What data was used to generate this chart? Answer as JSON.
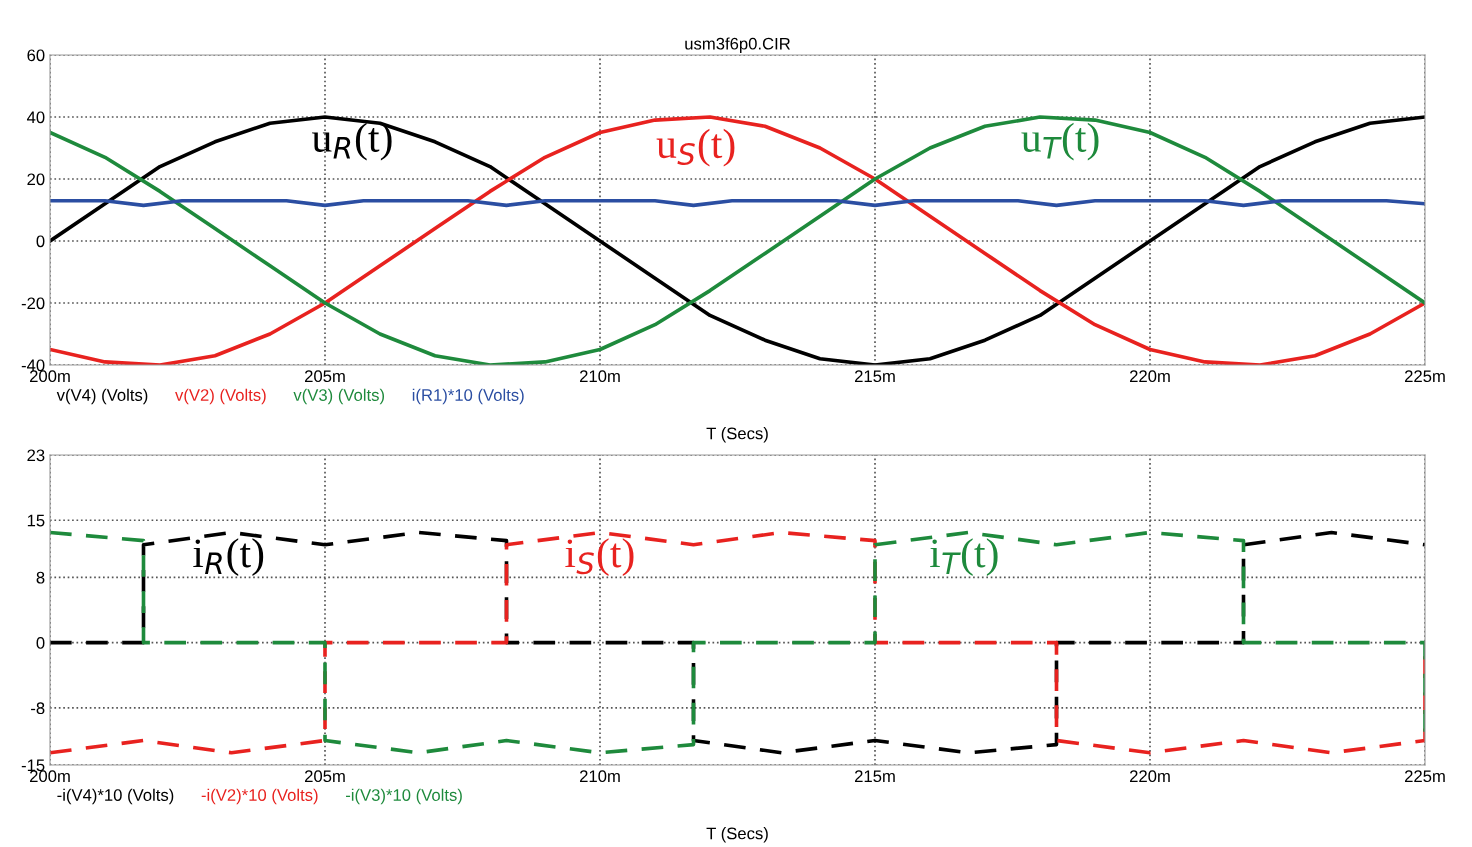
{
  "chart_data": [
    {
      "type": "line",
      "title": "usm3f6p0.CIR",
      "xlabel": "T (Secs)",
      "x": [
        200,
        201,
        202,
        203,
        204,
        205,
        206,
        207,
        208,
        209,
        210,
        211,
        212,
        213,
        214,
        215,
        216,
        217,
        218,
        219,
        220,
        221,
        222,
        223,
        224,
        225
      ],
      "series": [
        {
          "name": "v(V4) (Volts)",
          "color": "#000000",
          "values": [
            0,
            12,
            24,
            32,
            38,
            40,
            38,
            32,
            24,
            12,
            0,
            -12,
            -24,
            -32,
            -38,
            -40,
            -38,
            -32,
            -24,
            -12,
            0,
            12,
            24,
            32,
            38,
            40
          ]
        },
        {
          "name": "v(V2) (Volts)",
          "color": "#e8221f",
          "values": [
            -35,
            -39,
            -40,
            -37,
            -30,
            -20,
            -8,
            4,
            16,
            27,
            35,
            39,
            40,
            37,
            30,
            20,
            8,
            -4,
            -16,
            -27,
            -35,
            -39,
            -40,
            -37,
            -30,
            -20
          ]
        },
        {
          "name": "v(V3) (Volts)",
          "color": "#1e8a3c",
          "values": [
            35,
            27,
            16,
            4,
            -8,
            -20,
            -30,
            -37,
            -40,
            -39,
            -35,
            -27,
            -16,
            -4,
            8,
            20,
            30,
            37,
            40,
            39,
            35,
            27,
            16,
            4,
            -8,
            -20
          ]
        },
        {
          "name": "i(R1)*10 (Volts)",
          "color": "#2b4ea2",
          "x": [
            200,
            201,
            201.7,
            202.4,
            204.3,
            205,
            205.7,
            207.6,
            208.3,
            209,
            211,
            211.7,
            212.4,
            214.3,
            215,
            215.7,
            217.6,
            218.3,
            219,
            221,
            221.7,
            222.4,
            224.3,
            225
          ],
          "values": [
            13,
            13,
            11.5,
            13,
            13,
            11.5,
            13,
            13,
            11.5,
            13,
            13,
            11.5,
            13,
            13,
            11.5,
            13,
            13,
            11.5,
            13,
            13,
            11.5,
            13,
            13,
            12
          ]
        }
      ],
      "annotations": [
        "u$_{R}$(t)",
        "u$_{S}$(t)",
        "u$_{T}$(t)"
      ],
      "xlim": [
        200,
        225
      ],
      "xticks": [
        {
          "value": 200,
          "label": "200m"
        },
        {
          "value": 205,
          "label": "205m"
        },
        {
          "value": 210,
          "label": "210m"
        },
        {
          "value": 215,
          "label": "215m"
        },
        {
          "value": 220,
          "label": "220m"
        },
        {
          "value": 225,
          "label": "225m"
        }
      ],
      "ylim": [
        -40,
        60
      ],
      "yticks": [
        -40,
        -20,
        0,
        20,
        40,
        60
      ],
      "grid": true,
      "legend": "bottom",
      "line_style": "solid"
    },
    {
      "type": "line",
      "xlabel": "T (Secs)",
      "line_style": "dashed",
      "series": [
        {
          "name": "-i(V4)*10 (Volts)",
          "color": "#000000",
          "x": [
            200,
            201.7,
            201.7,
            203.3,
            205,
            206.7,
            208.3,
            208.3,
            211.7,
            211.7,
            213.3,
            215,
            216.7,
            218.3,
            218.3,
            221.7,
            221.7,
            223.3,
            225
          ],
          "values": [
            0,
            0,
            12,
            13.5,
            12,
            13.5,
            12.5,
            0,
            0,
            -12,
            -13.5,
            -12,
            -13.5,
            -12.5,
            0,
            0,
            12,
            13.5,
            12
          ]
        },
        {
          "name": "-i(V2)*10 (Volts)",
          "color": "#e8221f",
          "x": [
            200,
            201.7,
            203.3,
            205,
            205,
            208.3,
            208.3,
            210,
            211.7,
            213.3,
            215,
            215,
            218.3,
            218.3,
            220,
            221.7,
            223.3,
            225,
            225
          ],
          "values": [
            -13.5,
            -12,
            -13.5,
            -12,
            0,
            0,
            12,
            13.5,
            12,
            13.5,
            12.5,
            0,
            0,
            -12,
            -13.5,
            -12,
            -13.5,
            -12,
            0
          ]
        },
        {
          "name": "-i(V3)*10 (Volts)",
          "color": "#1e8a3c",
          "x": [
            200,
            201.7,
            201.7,
            205,
            205,
            206.7,
            208.3,
            210,
            211.7,
            211.7,
            215,
            215,
            216.7,
            218.3,
            220,
            221.7,
            221.7,
            225,
            225
          ],
          "values": [
            13.5,
            12.5,
            0,
            0,
            -12,
            -13.5,
            -12,
            -13.5,
            -12.5,
            0,
            0,
            12,
            13.5,
            12,
            13.5,
            12.5,
            0,
            0,
            -12
          ]
        }
      ],
      "annotations": [
        "i$_{R}$(t)",
        "i$_{S}$(t)",
        "i$_{T}$(t)"
      ],
      "xlim": [
        200,
        225
      ],
      "xticks": [
        {
          "value": 200,
          "label": "200m"
        },
        {
          "value": 205,
          "label": "205m"
        },
        {
          "value": 210,
          "label": "210m"
        },
        {
          "value": 215,
          "label": "215m"
        },
        {
          "value": 220,
          "label": "220m"
        },
        {
          "value": 225,
          "label": "225m"
        }
      ],
      "ylim": [
        -15,
        23
      ],
      "yticks": [
        -15,
        -8,
        0,
        8,
        15,
        23
      ],
      "grid": true,
      "legend": "bottom"
    }
  ]
}
